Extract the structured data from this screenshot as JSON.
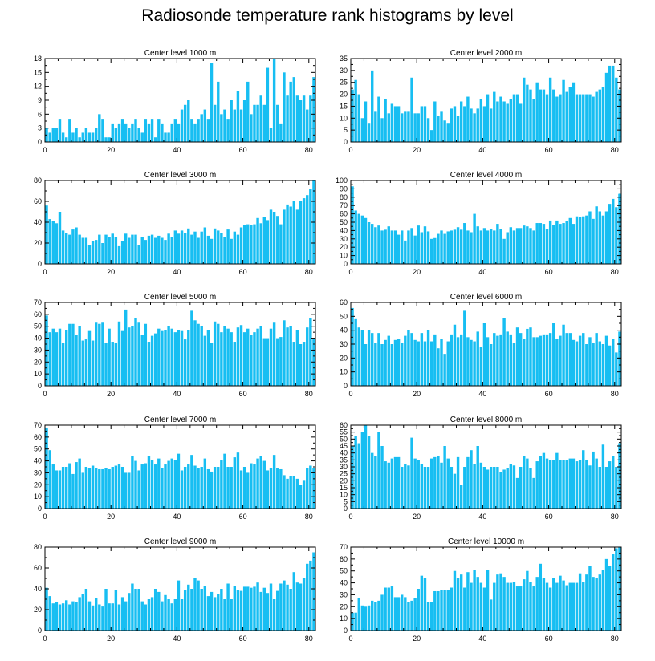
{
  "title": "Radiosonde temperature rank histograms by level",
  "bar_color": "#17BEF2",
  "chart_data": [
    {
      "type": "bar",
      "title": "Center level 1000 m",
      "xticks": [
        0,
        20,
        40,
        60,
        80
      ],
      "yticks": [
        0,
        3,
        6,
        9,
        12,
        15,
        18
      ],
      "ylim": [
        0,
        18
      ],
      "xlim": [
        0,
        82
      ],
      "values": [
        3,
        2,
        3,
        3,
        5,
        2,
        1,
        5,
        2,
        3,
        1,
        2,
        3,
        2,
        2,
        3,
        6,
        5,
        1,
        1,
        4,
        3,
        4,
        5,
        4,
        3,
        4,
        5,
        3,
        2,
        5,
        4,
        5,
        1,
        5,
        4,
        2,
        2,
        4,
        5,
        4,
        7,
        8,
        9,
        5,
        4,
        5,
        6,
        7,
        5,
        17,
        8,
        13,
        6,
        7,
        5,
        9,
        7,
        11,
        7,
        9,
        13,
        6,
        8,
        8,
        10,
        8,
        16,
        3,
        18,
        8,
        4,
        15,
        10,
        13,
        14,
        10,
        9,
        10,
        7,
        10,
        14
      ]
    },
    {
      "type": "bar",
      "title": "Center level 2000 m",
      "xticks": [
        0,
        20,
        40,
        60,
        80
      ],
      "yticks": [
        0,
        5,
        10,
        15,
        20,
        25,
        30,
        35
      ],
      "ylim": [
        0,
        35
      ],
      "xlim": [
        0,
        82
      ],
      "values": [
        22,
        26,
        20,
        10,
        17,
        8,
        30,
        13,
        19,
        10,
        18,
        12,
        16,
        15,
        15,
        12,
        13,
        13,
        27,
        12,
        12,
        15,
        15,
        10,
        5,
        17,
        11,
        13,
        9,
        8,
        14,
        15,
        11,
        17,
        15,
        19,
        14,
        12,
        14,
        18,
        15,
        20,
        14,
        21,
        17,
        19,
        17,
        16,
        18,
        20,
        20,
        16,
        27,
        24,
        22,
        18,
        25,
        22,
        22,
        20,
        27,
        22,
        19,
        20,
        26,
        21,
        23,
        25,
        20,
        20,
        20,
        20,
        20,
        19,
        21,
        22,
        23,
        29,
        32,
        32,
        27,
        22
      ]
    },
    {
      "type": "bar",
      "title": "Center level 3000 m",
      "xticks": [
        0,
        20,
        40,
        60,
        80
      ],
      "yticks": [
        0,
        20,
        40,
        60,
        80
      ],
      "ylim": [
        0,
        80
      ],
      "xlim": [
        0,
        82
      ],
      "values": [
        56,
        43,
        41,
        39,
        50,
        32,
        30,
        28,
        33,
        35,
        28,
        25,
        25,
        18,
        22,
        23,
        28,
        20,
        28,
        26,
        29,
        26,
        17,
        22,
        29,
        25,
        28,
        28,
        18,
        26,
        23,
        27,
        28,
        25,
        27,
        25,
        23,
        29,
        26,
        32,
        29,
        32,
        30,
        34,
        28,
        31,
        25,
        31,
        35,
        27,
        24,
        34,
        32,
        30,
        26,
        33,
        24,
        31,
        28,
        35,
        37,
        38,
        37,
        38,
        44,
        39,
        45,
        42,
        52,
        50,
        46,
        38,
        52,
        57,
        55,
        60,
        52,
        60,
        63,
        66,
        72,
        80
      ]
    },
    {
      "type": "bar",
      "title": "Center level 4000 m",
      "xticks": [
        0,
        20,
        40,
        60,
        80
      ],
      "yticks": [
        0,
        10,
        20,
        30,
        40,
        50,
        60,
        70,
        80,
        90,
        100
      ],
      "ylim": [
        0,
        100
      ],
      "xlim": [
        0,
        82
      ],
      "values": [
        93,
        64,
        60,
        58,
        55,
        50,
        48,
        44,
        46,
        40,
        41,
        45,
        40,
        40,
        35,
        40,
        28,
        40,
        43,
        34,
        46,
        38,
        45,
        39,
        30,
        31,
        36,
        40,
        36,
        39,
        40,
        41,
        44,
        41,
        49,
        40,
        38,
        60,
        45,
        40,
        43,
        40,
        42,
        40,
        48,
        42,
        30,
        38,
        44,
        40,
        43,
        43,
        46,
        45,
        43,
        40,
        49,
        49,
        48,
        42,
        52,
        47,
        52,
        48,
        49,
        51,
        55,
        48,
        57,
        56,
        57,
        58,
        63,
        54,
        69,
        63,
        58,
        63,
        72,
        78,
        68,
        84
      ]
    },
    {
      "type": "bar",
      "title": "Center level 5000 m",
      "xticks": [
        0,
        20,
        40,
        60,
        80
      ],
      "yticks": [
        0,
        10,
        20,
        30,
        40,
        50,
        60,
        70
      ],
      "ylim": [
        0,
        70
      ],
      "xlim": [
        0,
        82
      ],
      "values": [
        59,
        45,
        48,
        45,
        48,
        36,
        47,
        52,
        52,
        43,
        50,
        38,
        39,
        46,
        38,
        53,
        52,
        53,
        36,
        48,
        37,
        36,
        54,
        46,
        64,
        49,
        50,
        57,
        53,
        43,
        52,
        37,
        42,
        44,
        48,
        46,
        47,
        50,
        48,
        45,
        47,
        46,
        39,
        47,
        63,
        55,
        52,
        50,
        42,
        47,
        36,
        54,
        52,
        45,
        50,
        48,
        45,
        37,
        49,
        51,
        45,
        48,
        43,
        45,
        48,
        50,
        40,
        40,
        48,
        53,
        40,
        41,
        55,
        49,
        50,
        37,
        47,
        35,
        37,
        49,
        57,
        40
      ]
    },
    {
      "type": "bar",
      "title": "Center level 6000 m",
      "xticks": [
        0,
        20,
        40,
        60,
        80
      ],
      "yticks": [
        0,
        10,
        20,
        30,
        40,
        50,
        60
      ],
      "ylim": [
        0,
        60
      ],
      "xlim": [
        0,
        82
      ],
      "values": [
        56,
        48,
        42,
        40,
        30,
        40,
        38,
        31,
        38,
        30,
        33,
        36,
        30,
        33,
        34,
        31,
        36,
        40,
        38,
        33,
        32,
        38,
        32,
        40,
        32,
        37,
        27,
        34,
        23,
        32,
        37,
        44,
        35,
        37,
        54,
        35,
        33,
        32,
        39,
        28,
        45,
        35,
        30,
        38,
        36,
        37,
        49,
        39,
        37,
        31,
        42,
        38,
        34,
        41,
        42,
        35,
        35,
        36,
        37,
        37,
        38,
        45,
        34,
        36,
        44,
        38,
        38,
        33,
        32,
        36,
        38,
        30,
        35,
        31,
        38,
        32,
        30,
        36,
        29,
        34,
        24,
        39
      ]
    },
    {
      "type": "bar",
      "title": "Center level 7000 m",
      "xticks": [
        0,
        20,
        40,
        60,
        80
      ],
      "yticks": [
        0,
        10,
        20,
        30,
        40,
        50,
        60,
        70
      ],
      "ylim": [
        0,
        70
      ],
      "xlim": [
        0,
        82
      ],
      "values": [
        68,
        49,
        37,
        32,
        32,
        35,
        35,
        38,
        29,
        39,
        42,
        30,
        35,
        34,
        36,
        34,
        33,
        33,
        34,
        33,
        35,
        36,
        37,
        35,
        30,
        30,
        44,
        40,
        32,
        37,
        38,
        44,
        41,
        37,
        42,
        34,
        37,
        40,
        42,
        41,
        46,
        32,
        35,
        37,
        45,
        36,
        34,
        35,
        42,
        33,
        31,
        35,
        35,
        41,
        46,
        35,
        35,
        43,
        47,
        32,
        35,
        30,
        38,
        37,
        42,
        44,
        40,
        32,
        34,
        45,
        34,
        33,
        28,
        25,
        27,
        27,
        25,
        20,
        24,
        34,
        36,
        34
      ]
    },
    {
      "type": "bar",
      "title": "Center level 8000 m",
      "xticks": [
        0,
        20,
        40,
        60,
        80
      ],
      "yticks": [
        0,
        5,
        10,
        15,
        20,
        25,
        30,
        35,
        40,
        45,
        50,
        55,
        60
      ],
      "ylim": [
        0,
        60
      ],
      "xlim": [
        0,
        82
      ],
      "values": [
        45,
        52,
        47,
        55,
        60,
        52,
        40,
        38,
        55,
        45,
        34,
        33,
        36,
        37,
        37,
        30,
        32,
        31,
        51,
        36,
        35,
        32,
        30,
        30,
        36,
        37,
        38,
        33,
        45,
        36,
        30,
        25,
        37,
        17,
        30,
        37,
        42,
        32,
        45,
        33,
        30,
        28,
        30,
        30,
        30,
        26,
        28,
        29,
        32,
        31,
        22,
        30,
        38,
        36,
        29,
        22,
        34,
        38,
        40,
        36,
        35,
        35,
        40,
        35,
        35,
        35,
        36,
        36,
        34,
        35,
        42,
        35,
        31,
        41,
        36,
        30,
        46,
        30,
        34,
        38,
        30,
        47
      ]
    },
    {
      "type": "bar",
      "title": "Center level 9000 m",
      "xticks": [
        0,
        20,
        40,
        60,
        80
      ],
      "yticks": [
        0,
        20,
        40,
        60,
        80
      ],
      "ylim": [
        0,
        80
      ],
      "xlim": [
        0,
        82
      ],
      "values": [
        41,
        33,
        26,
        27,
        25,
        26,
        29,
        25,
        28,
        27,
        32,
        35,
        40,
        28,
        24,
        31,
        25,
        23,
        40,
        26,
        26,
        39,
        25,
        32,
        28,
        36,
        45,
        40,
        40,
        28,
        25,
        30,
        32,
        40,
        37,
        28,
        34,
        30,
        26,
        30,
        48,
        30,
        39,
        44,
        40,
        50,
        48,
        40,
        43,
        33,
        37,
        32,
        35,
        40,
        30,
        45,
        30,
        43,
        39,
        38,
        42,
        42,
        41,
        42,
        46,
        37,
        41,
        36,
        45,
        30,
        38,
        45,
        48,
        44,
        40,
        56,
        46,
        45,
        50,
        64,
        67,
        75
      ]
    },
    {
      "type": "bar",
      "title": "Center level 10000 m",
      "xticks": [
        0,
        20,
        40,
        60,
        80
      ],
      "yticks": [
        0,
        10,
        20,
        30,
        40,
        50,
        60,
        70
      ],
      "ylim": [
        0,
        70
      ],
      "xlim": [
        0,
        82
      ],
      "values": [
        15,
        15,
        27,
        21,
        20,
        21,
        25,
        24,
        25,
        30,
        36,
        36,
        37,
        28,
        28,
        30,
        28,
        24,
        25,
        27,
        35,
        46,
        44,
        24,
        24,
        33,
        33,
        34,
        34,
        34,
        36,
        50,
        44,
        47,
        36,
        49,
        40,
        51,
        45,
        40,
        36,
        51,
        26,
        40,
        47,
        48,
        45,
        40,
        40,
        41,
        37,
        37,
        43,
        50,
        41,
        37,
        45,
        56,
        44,
        40,
        36,
        44,
        40,
        46,
        42,
        38,
        40,
        40,
        40,
        48,
        41,
        47,
        54,
        45,
        44,
        47,
        51,
        60,
        54,
        64,
        69,
        70
      ]
    }
  ]
}
